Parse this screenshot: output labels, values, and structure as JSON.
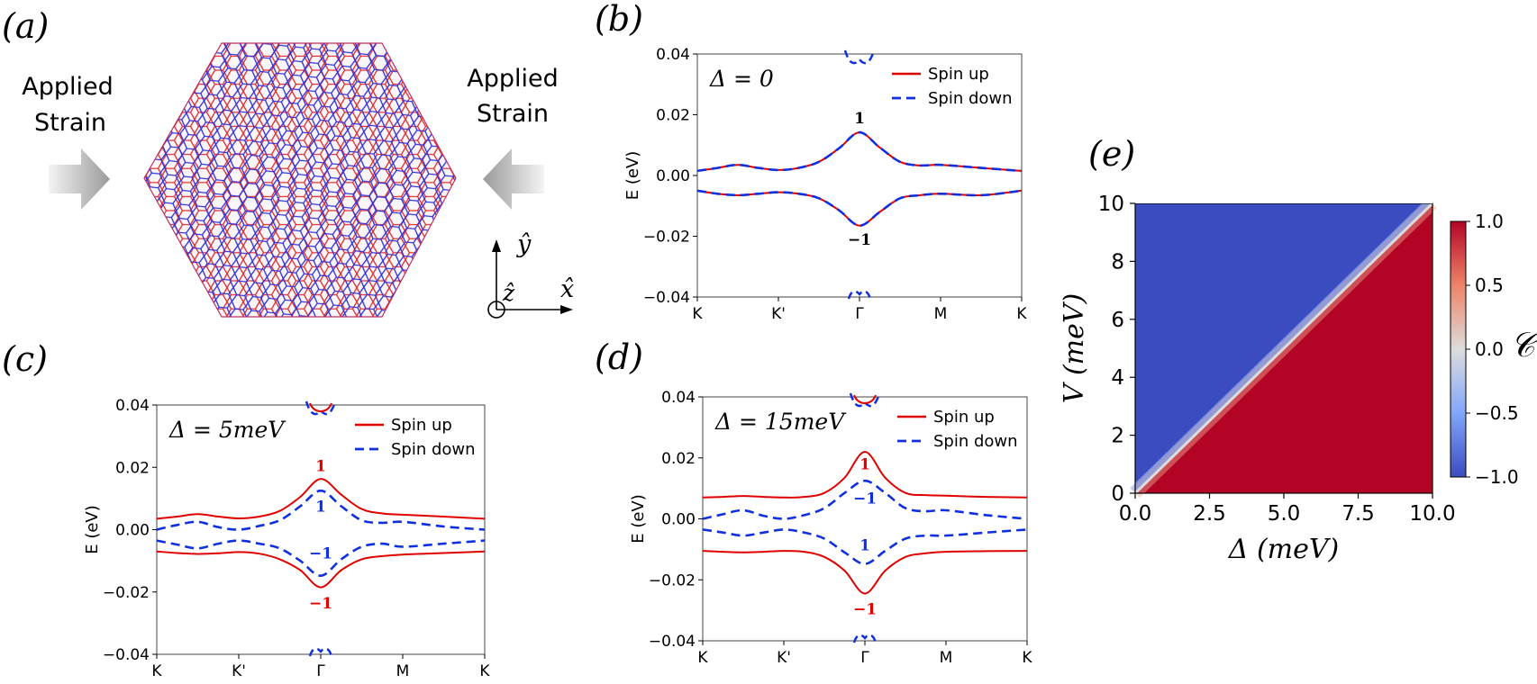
{
  "panel_labels": [
    "(a)",
    "(b)",
    "(c)",
    "(d)",
    "(e)"
  ],
  "panel_a": {
    "left_label": [
      "Applied",
      "Strain"
    ],
    "right_label": [
      "Applied",
      "Strain"
    ],
    "axis_y": "ŷ",
    "axis_x": "x̂",
    "axis_z": "ẑ",
    "lattice_colors": [
      "#e03030",
      "#3030e0"
    ]
  },
  "colors": {
    "spin_up": "#e00000",
    "spin_down": "#1030e0"
  },
  "chart_data": [
    {
      "id": "b",
      "type": "line",
      "title": "Δ = 0",
      "ylabel": "E (eV)",
      "ylim": [
        -0.04,
        0.04
      ],
      "yticks": [
        "0.04",
        "0.02",
        "0.00",
        "−0.02",
        "−0.04"
      ],
      "yticks_values": [
        0.04,
        0.02,
        0.0,
        -0.02,
        -0.04
      ],
      "categories": [
        "K",
        "K'",
        "Γ",
        "M",
        "K"
      ],
      "legend": [
        "Spin up",
        "Spin down"
      ],
      "series": [
        {
          "name": "Spin up",
          "style": "solid",
          "x": [
            0,
            0.25,
            0.5,
            0.75,
            1,
            1.25,
            1.5,
            1.75,
            2,
            2.25,
            2.5,
            2.75,
            3,
            3.5,
            4
          ],
          "values": [
            0.0015,
            0.0025,
            0.0035,
            0.0025,
            0.0018,
            0.0025,
            0.0045,
            0.009,
            0.0142,
            0.0092,
            0.0045,
            0.0033,
            0.0035,
            0.0025,
            0.0015
          ]
        },
        {
          "name": "Spin up",
          "style": "solid",
          "x": [
            0,
            0.25,
            0.5,
            0.75,
            1,
            1.25,
            1.5,
            1.75,
            2,
            2.25,
            2.5,
            2.75,
            3,
            3.5,
            4
          ],
          "values": [
            -0.005,
            -0.006,
            -0.0065,
            -0.006,
            -0.0055,
            -0.006,
            -0.0075,
            -0.0115,
            -0.0165,
            -0.012,
            -0.0075,
            -0.0065,
            -0.006,
            -0.0065,
            -0.005
          ]
        },
        {
          "name": "Spin down",
          "style": "dashed",
          "x": [
            0,
            0.25,
            0.5,
            0.75,
            1,
            1.25,
            1.5,
            1.75,
            2,
            2.25,
            2.5,
            2.75,
            3,
            3.5,
            4
          ],
          "values": [
            0.0015,
            0.0025,
            0.0035,
            0.0025,
            0.0018,
            0.0025,
            0.0045,
            0.009,
            0.0142,
            0.0092,
            0.0045,
            0.0033,
            0.0035,
            0.0025,
            0.0015
          ]
        },
        {
          "name": "Spin down",
          "style": "dashed",
          "x": [
            0,
            0.25,
            0.5,
            0.75,
            1,
            1.25,
            1.5,
            1.75,
            2,
            2.25,
            2.5,
            2.75,
            3,
            3.5,
            4
          ],
          "values": [
            -0.005,
            -0.006,
            -0.0065,
            -0.006,
            -0.0055,
            -0.006,
            -0.0075,
            -0.0115,
            -0.0165,
            -0.012,
            -0.0075,
            -0.0065,
            -0.006,
            -0.0065,
            -0.005
          ]
        }
      ],
      "annotations": [
        {
          "text": "1",
          "x": 2,
          "y": 0.019,
          "color": "#000000"
        },
        {
          "text": "−1",
          "x": 2,
          "y": -0.021,
          "color": "#000000"
        }
      ]
    },
    {
      "id": "c",
      "type": "line",
      "title": "Δ = 5meV",
      "ylabel": "E (eV)",
      "ylim": [
        -0.04,
        0.04
      ],
      "yticks": [
        "0.04",
        "0.02",
        "0.00",
        "−0.02",
        "−0.04"
      ],
      "yticks_values": [
        0.04,
        0.02,
        0.0,
        -0.02,
        -0.04
      ],
      "categories": [
        "K",
        "K'",
        "Γ",
        "M",
        "K"
      ],
      "legend": [
        "Spin up",
        "Spin down"
      ],
      "series": [
        {
          "name": "Spin up",
          "style": "solid",
          "x": [
            0,
            0.25,
            0.5,
            0.75,
            1,
            1.25,
            1.5,
            1.75,
            2,
            2.25,
            2.5,
            2.75,
            3,
            3.5,
            4
          ],
          "values": [
            0.0035,
            0.0042,
            0.005,
            0.0042,
            0.0036,
            0.0042,
            0.006,
            0.0105,
            0.0163,
            0.0112,
            0.0066,
            0.0052,
            0.0048,
            0.0042,
            0.0035
          ]
        },
        {
          "name": "Spin up",
          "style": "solid",
          "x": [
            0,
            0.25,
            0.5,
            0.75,
            1,
            1.25,
            1.5,
            1.75,
            2,
            2.25,
            2.5,
            2.75,
            3,
            3.5,
            4
          ],
          "values": [
            -0.007,
            -0.0075,
            -0.0078,
            -0.0076,
            -0.0072,
            -0.0077,
            -0.0095,
            -0.013,
            -0.0185,
            -0.013,
            -0.0095,
            -0.0085,
            -0.008,
            -0.0075,
            -0.007
          ]
        },
        {
          "name": "Spin down",
          "style": "dashed",
          "x": [
            0,
            0.25,
            0.5,
            0.75,
            1,
            1.25,
            1.5,
            1.75,
            2,
            2.25,
            2.5,
            2.75,
            3,
            3.5,
            4
          ],
          "values": [
            0.0,
            0.0015,
            0.0025,
            0.0008,
            0.0,
            0.0012,
            0.003,
            0.0075,
            0.0125,
            0.0075,
            0.003,
            0.0022,
            0.0025,
            0.001,
            0.0
          ]
        },
        {
          "name": "Spin down",
          "style": "dashed",
          "x": [
            0,
            0.25,
            0.5,
            0.75,
            1,
            1.25,
            1.5,
            1.75,
            2,
            2.25,
            2.5,
            2.75,
            3,
            3.5,
            4
          ],
          "values": [
            -0.0035,
            -0.0048,
            -0.006,
            -0.0045,
            -0.0035,
            -0.0045,
            -0.006,
            -0.01,
            -0.0148,
            -0.0095,
            -0.0055,
            -0.0045,
            -0.0055,
            -0.0045,
            -0.0035
          ]
        }
      ],
      "annotations": [
        {
          "text": "1",
          "x": 2,
          "y": 0.0205,
          "color": "#e00000"
        },
        {
          "text": "1",
          "x": 2,
          "y": 0.0075,
          "color": "#1030e0"
        },
        {
          "text": "−1",
          "x": 2,
          "y": -0.0075,
          "color": "#1030e0"
        },
        {
          "text": "−1",
          "x": 2,
          "y": -0.0235,
          "color": "#e00000"
        }
      ]
    },
    {
      "id": "d",
      "type": "line",
      "title": "Δ = 15meV",
      "ylabel": "E (eV)",
      "ylim": [
        -0.04,
        0.04
      ],
      "yticks": [
        "0.04",
        "0.02",
        "0.00",
        "−0.02",
        "−0.04"
      ],
      "yticks_values": [
        0.04,
        0.02,
        0.0,
        -0.02,
        -0.04
      ],
      "categories": [
        "K",
        "K'",
        "Γ",
        "M",
        "K"
      ],
      "legend": [
        "Spin up",
        "Spin down"
      ],
      "series": [
        {
          "name": "Spin up",
          "style": "solid",
          "x": [
            0,
            0.25,
            0.5,
            0.75,
            1,
            1.25,
            1.5,
            1.75,
            2,
            2.25,
            2.5,
            2.75,
            3,
            3.5,
            4
          ],
          "values": [
            0.007,
            0.0072,
            0.0075,
            0.0072,
            0.007,
            0.0072,
            0.0085,
            0.0135,
            0.022,
            0.0135,
            0.0085,
            0.0078,
            0.0076,
            0.0072,
            0.007
          ]
        },
        {
          "name": "Spin up",
          "style": "solid",
          "x": [
            0,
            0.25,
            0.5,
            0.75,
            1,
            1.25,
            1.5,
            1.75,
            2,
            2.25,
            2.5,
            2.75,
            3,
            3.5,
            4
          ],
          "values": [
            -0.0105,
            -0.0108,
            -0.011,
            -0.0108,
            -0.0105,
            -0.0108,
            -0.0125,
            -0.017,
            -0.0245,
            -0.017,
            -0.0125,
            -0.0113,
            -0.0108,
            -0.0106,
            -0.0105
          ]
        },
        {
          "name": "Spin down",
          "style": "dashed",
          "x": [
            0,
            0.25,
            0.5,
            0.75,
            1,
            1.25,
            1.5,
            1.75,
            2,
            2.25,
            2.5,
            2.75,
            3,
            3.5,
            4
          ],
          "values": [
            0.0,
            0.0015,
            0.0028,
            0.001,
            0.0,
            0.0012,
            0.0035,
            0.0085,
            0.0125,
            0.0085,
            0.0035,
            0.0025,
            0.0028,
            0.0012,
            0.0
          ]
        },
        {
          "name": "Spin down",
          "style": "dashed",
          "x": [
            0,
            0.25,
            0.5,
            0.75,
            1,
            1.25,
            1.5,
            1.75,
            2,
            2.25,
            2.5,
            2.75,
            3,
            3.5,
            4
          ],
          "values": [
            -0.0035,
            -0.0045,
            -0.0055,
            -0.0045,
            -0.0035,
            -0.0045,
            -0.0065,
            -0.011,
            -0.0148,
            -0.0105,
            -0.0065,
            -0.0055,
            -0.0055,
            -0.0045,
            -0.0035
          ]
        }
      ],
      "annotations": [
        {
          "text": "1",
          "x": 2,
          "y": 0.018,
          "color": "#e00000"
        },
        {
          "text": "−1",
          "x": 2,
          "y": 0.0068,
          "color": "#1030e0"
        },
        {
          "text": "1",
          "x": 2,
          "y": -0.0085,
          "color": "#1030e0"
        },
        {
          "text": "−1",
          "x": 2,
          "y": -0.0295,
          "color": "#e00000"
        }
      ]
    },
    {
      "id": "e",
      "type": "heatmap",
      "xlabel": "Δ (meV)",
      "ylabel": "V (meV)",
      "xlim": [
        0,
        10
      ],
      "ylim": [
        0,
        10
      ],
      "xticks": [
        "0.0",
        "2.5",
        "5.0",
        "7.5",
        "10.0"
      ],
      "xticks_values": [
        0,
        2.5,
        5,
        7.5,
        10
      ],
      "yticks": [
        "0",
        "2",
        "4",
        "6",
        "8",
        "10"
      ],
      "yticks_values": [
        0,
        2,
        4,
        6,
        8,
        10
      ],
      "colorbar": {
        "label": "𝒞",
        "range": [
          -1.0,
          1.0
        ],
        "ticks": [
          "1.0",
          "0.5",
          "0.0",
          "−0.5",
          "−1.0"
        ],
        "ticks_values": [
          1.0,
          0.5,
          0.0,
          -0.5,
          -1.0
        ]
      },
      "regions": [
        {
          "condition": "V > Δ",
          "value": -1
        },
        {
          "condition": "V < Δ",
          "value": 1
        }
      ]
    }
  ]
}
